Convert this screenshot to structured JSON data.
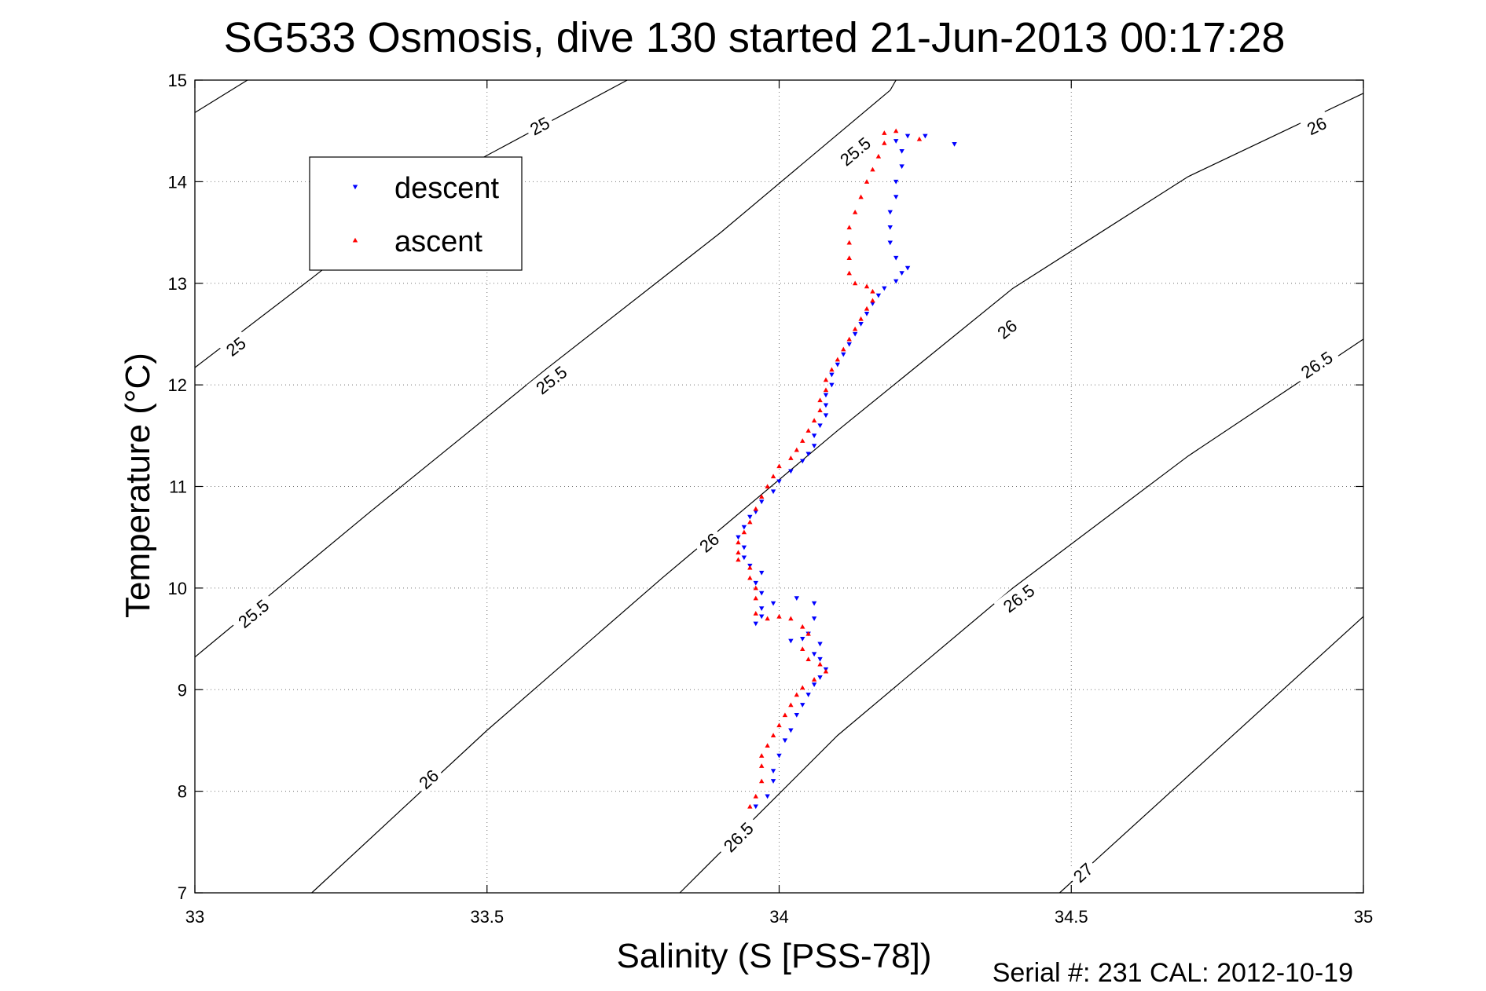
{
  "chart_data": {
    "type": "scatter",
    "title": "SG533 Osmosis, dive 130 started 21-Jun-2013 00:17:28",
    "xlabel": "Salinity (S [PSS-78])",
    "ylabel": "Temperature (°C)",
    "footer": "Serial #: 231  CAL: 2012-10-19",
    "xlim": [
      33,
      35
    ],
    "ylim": [
      7,
      15
    ],
    "x_ticks": [
      33,
      33.5,
      34,
      34.5,
      35
    ],
    "x_tick_labels": [
      "33",
      "33.5",
      "34",
      "34.5",
      "35"
    ],
    "y_ticks": [
      7,
      8,
      9,
      10,
      11,
      12,
      13,
      14,
      15
    ],
    "y_tick_labels": [
      "7",
      "8",
      "9",
      "10",
      "11",
      "12",
      "13",
      "14",
      "15"
    ],
    "grid": true,
    "legend_position": "top-left",
    "colors": {
      "descent": "#0000ff",
      "ascent": "#ff0000",
      "contour": "#000000"
    },
    "series": [
      {
        "name": "descent",
        "marker": "triangle-down",
        "points": [
          [
            33.96,
            7.85
          ],
          [
            33.98,
            7.95
          ],
          [
            33.99,
            8.1
          ],
          [
            33.99,
            8.2
          ],
          [
            34.0,
            8.35
          ],
          [
            34.01,
            8.5
          ],
          [
            34.02,
            8.6
          ],
          [
            34.03,
            8.75
          ],
          [
            34.04,
            8.85
          ],
          [
            34.05,
            8.95
          ],
          [
            34.06,
            9.05
          ],
          [
            34.07,
            9.12
          ],
          [
            34.08,
            9.2
          ],
          [
            34.07,
            9.3
          ],
          [
            34.06,
            9.35
          ],
          [
            34.07,
            9.45
          ],
          [
            34.04,
            9.5
          ],
          [
            34.02,
            9.48
          ],
          [
            34.05,
            9.55
          ],
          [
            34.06,
            9.7
          ],
          [
            34.06,
            9.85
          ],
          [
            34.03,
            9.9
          ],
          [
            33.99,
            9.85
          ],
          [
            33.97,
            9.72
          ],
          [
            33.96,
            9.65
          ],
          [
            33.97,
            9.8
          ],
          [
            33.97,
            9.95
          ],
          [
            33.96,
            10.05
          ],
          [
            33.97,
            10.15
          ],
          [
            33.95,
            10.22
          ],
          [
            33.94,
            10.3
          ],
          [
            33.94,
            10.4
          ],
          [
            33.93,
            10.5
          ],
          [
            33.94,
            10.6
          ],
          [
            33.95,
            10.7
          ],
          [
            33.96,
            10.75
          ],
          [
            33.97,
            10.85
          ],
          [
            33.99,
            10.95
          ],
          [
            34.0,
            11.05
          ],
          [
            34.02,
            11.15
          ],
          [
            34.04,
            11.25
          ],
          [
            34.05,
            11.32
          ],
          [
            34.06,
            11.4
          ],
          [
            34.06,
            11.5
          ],
          [
            34.07,
            11.6
          ],
          [
            34.08,
            11.7
          ],
          [
            34.08,
            11.8
          ],
          [
            34.08,
            11.9
          ],
          [
            34.09,
            12.0
          ],
          [
            34.09,
            12.1
          ],
          [
            34.1,
            12.2
          ],
          [
            34.11,
            12.3
          ],
          [
            34.12,
            12.4
          ],
          [
            34.13,
            12.5
          ],
          [
            34.14,
            12.6
          ],
          [
            34.15,
            12.7
          ],
          [
            34.16,
            12.8
          ],
          [
            34.17,
            12.88
          ],
          [
            34.18,
            12.95
          ],
          [
            34.2,
            13.02
          ],
          [
            34.21,
            13.1
          ],
          [
            34.22,
            13.15
          ],
          [
            34.2,
            13.25
          ],
          [
            34.19,
            13.4
          ],
          [
            34.19,
            13.55
          ],
          [
            34.19,
            13.7
          ],
          [
            34.2,
            13.85
          ],
          [
            34.2,
            14.0
          ],
          [
            34.21,
            14.15
          ],
          [
            34.21,
            14.3
          ],
          [
            34.2,
            14.4
          ],
          [
            34.22,
            14.45
          ],
          [
            34.25,
            14.45
          ],
          [
            34.3,
            14.37
          ]
        ]
      },
      {
        "name": "ascent",
        "marker": "triangle-up",
        "points": [
          [
            33.95,
            7.85
          ],
          [
            33.96,
            7.95
          ],
          [
            33.97,
            8.1
          ],
          [
            33.97,
            8.25
          ],
          [
            33.97,
            8.35
          ],
          [
            33.98,
            8.45
          ],
          [
            33.99,
            8.55
          ],
          [
            34.0,
            8.65
          ],
          [
            34.01,
            8.75
          ],
          [
            34.02,
            8.85
          ],
          [
            34.03,
            8.95
          ],
          [
            34.04,
            9.02
          ],
          [
            34.06,
            9.1
          ],
          [
            34.08,
            9.18
          ],
          [
            34.07,
            9.25
          ],
          [
            34.05,
            9.3
          ],
          [
            34.04,
            9.4
          ],
          [
            34.05,
            9.55
          ],
          [
            34.04,
            9.62
          ],
          [
            34.02,
            9.7
          ],
          [
            34.0,
            9.72
          ],
          [
            33.98,
            9.7
          ],
          [
            33.96,
            9.75
          ],
          [
            33.96,
            9.9
          ],
          [
            33.96,
            10.0
          ],
          [
            33.95,
            10.1
          ],
          [
            33.95,
            10.2
          ],
          [
            33.93,
            10.28
          ],
          [
            33.93,
            10.35
          ],
          [
            33.93,
            10.45
          ],
          [
            33.94,
            10.55
          ],
          [
            33.95,
            10.65
          ],
          [
            33.96,
            10.78
          ],
          [
            33.97,
            10.9
          ],
          [
            33.98,
            11.0
          ],
          [
            33.99,
            11.1
          ],
          [
            34.0,
            11.2
          ],
          [
            34.02,
            11.28
          ],
          [
            34.03,
            11.36
          ],
          [
            34.04,
            11.45
          ],
          [
            34.05,
            11.55
          ],
          [
            34.06,
            11.65
          ],
          [
            34.07,
            11.75
          ],
          [
            34.07,
            11.85
          ],
          [
            34.08,
            11.95
          ],
          [
            34.08,
            12.05
          ],
          [
            34.09,
            12.15
          ],
          [
            34.1,
            12.25
          ],
          [
            34.11,
            12.35
          ],
          [
            34.12,
            12.45
          ],
          [
            34.13,
            12.55
          ],
          [
            34.14,
            12.65
          ],
          [
            34.15,
            12.75
          ],
          [
            34.16,
            12.83
          ],
          [
            34.16,
            12.92
          ],
          [
            34.15,
            12.97
          ],
          [
            34.13,
            13.0
          ],
          [
            34.12,
            13.1
          ],
          [
            34.12,
            13.25
          ],
          [
            34.12,
            13.4
          ],
          [
            34.12,
            13.55
          ],
          [
            34.13,
            13.7
          ],
          [
            34.14,
            13.85
          ],
          [
            34.15,
            14.0
          ],
          [
            34.16,
            14.12
          ],
          [
            34.17,
            14.25
          ],
          [
            34.18,
            14.38
          ],
          [
            34.18,
            14.48
          ],
          [
            34.2,
            14.5
          ],
          [
            34.24,
            14.42
          ]
        ]
      }
    ],
    "contours": [
      {
        "label": "25",
        "points": [
          [
            33.0,
            14.68
          ],
          [
            33.09,
            15.0
          ]
        ],
        "labels_at": []
      },
      {
        "label": "25",
        "points": [
          [
            33.0,
            12.17
          ],
          [
            33.2,
            13.05
          ],
          [
            33.4,
            13.95
          ],
          [
            33.74,
            15.0
          ]
        ],
        "labels_at": [
          [
            33.07,
            12.38
          ],
          [
            33.59,
            14.55
          ]
        ]
      },
      {
        "label": "25.5",
        "points": [
          [
            33.0,
            9.32
          ],
          [
            33.3,
            10.75
          ],
          [
            33.6,
            12.15
          ],
          [
            33.9,
            13.5
          ],
          [
            34.19,
            14.9
          ],
          [
            34.2,
            15.0
          ]
        ],
        "labels_at": [
          [
            33.1,
            9.75
          ],
          [
            33.61,
            12.05
          ],
          [
            34.13,
            14.3
          ]
        ]
      },
      {
        "label": "26",
        "points": [
          [
            33.2,
            7.0
          ],
          [
            33.5,
            8.6
          ],
          [
            33.8,
            10.1
          ],
          [
            34.1,
            11.55
          ],
          [
            34.4,
            12.95
          ],
          [
            34.7,
            14.05
          ],
          [
            35.0,
            14.87
          ]
        ],
        "labels_at": [
          [
            33.4,
            8.12
          ],
          [
            33.88,
            10.45
          ],
          [
            34.39,
            12.55
          ],
          [
            34.92,
            14.55
          ]
        ]
      },
      {
        "label": "26.5",
        "points": [
          [
            33.83,
            7.0
          ],
          [
            34.1,
            8.55
          ],
          [
            34.4,
            10.0
          ],
          [
            34.7,
            11.3
          ],
          [
            35.0,
            12.45
          ]
        ],
        "labels_at": [
          [
            33.93,
            7.55
          ],
          [
            34.41,
            9.9
          ],
          [
            34.92,
            12.2
          ]
        ]
      },
      {
        "label": "27",
        "points": [
          [
            34.48,
            7.0
          ],
          [
            34.7,
            8.15
          ],
          [
            35.0,
            9.72
          ]
        ],
        "labels_at": [
          [
            34.52,
            7.2
          ]
        ]
      }
    ]
  }
}
